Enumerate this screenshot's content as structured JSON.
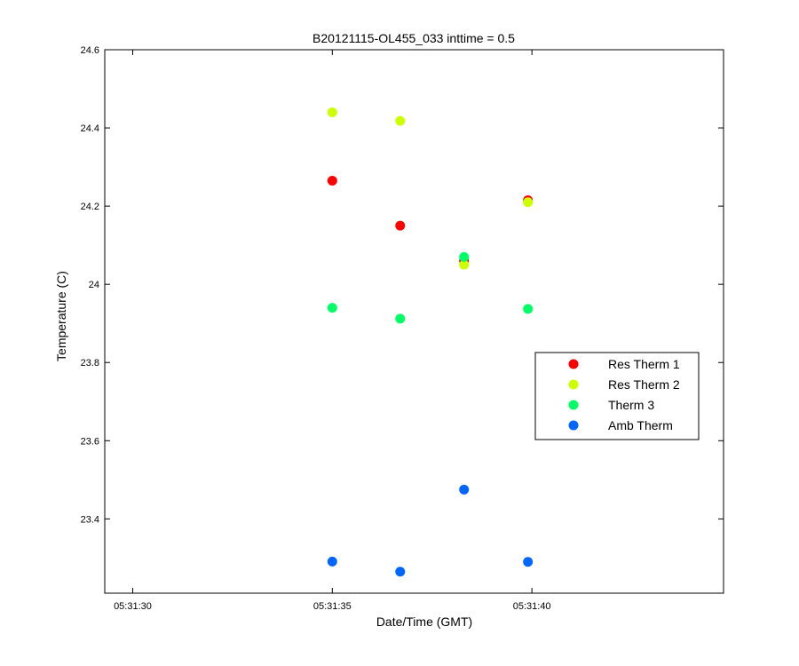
{
  "chart_data": {
    "type": "scatter",
    "title": "B20121115-OL455_033 inttime = 0.5",
    "xlabel": "Date/Time (GMT)",
    "ylabel": "Temperature (C)",
    "xlim": [
      "05:31:29.3",
      "05:31:44.8"
    ],
    "ylim": [
      23.21,
      24.6
    ],
    "x_ticks": [
      {
        "value": "05:31:30",
        "label": "05:31:30"
      },
      {
        "value": "05:31:35",
        "label": "05:31:35"
      },
      {
        "value": "05:31:40",
        "label": "05:31:40"
      }
    ],
    "y_ticks": [
      {
        "value": 23.4,
        "label": "23.4"
      },
      {
        "value": 23.6,
        "label": "23.6"
      },
      {
        "value": 23.8,
        "label": "23.8"
      },
      {
        "value": 24.0,
        "label": "24"
      },
      {
        "value": 24.2,
        "label": "24.2"
      },
      {
        "value": 24.4,
        "label": "24.4"
      },
      {
        "value": 24.6,
        "label": "24.6"
      }
    ],
    "grid": false,
    "legend_position": "right",
    "series": [
      {
        "name": "Res Therm 1",
        "color": "#ff0000",
        "x": [
          "05:31:35.0",
          "05:31:36.7",
          "05:31:38.3",
          "05:31:39.9"
        ],
        "y": [
          24.265,
          24.15,
          24.06,
          24.215
        ]
      },
      {
        "name": "Res Therm 2",
        "color": "#ccff00",
        "x": [
          "05:31:35.0",
          "05:31:36.7",
          "05:31:38.3",
          "05:31:39.9"
        ],
        "y": [
          24.44,
          24.418,
          24.05,
          24.21
        ]
      },
      {
        "name": "Therm 3",
        "color": "#00ff66",
        "x": [
          "05:31:35.0",
          "05:31:36.7",
          "05:31:38.3",
          "05:31:39.9"
        ],
        "y": [
          23.94,
          23.912,
          24.07,
          23.937
        ]
      },
      {
        "name": "Amb Therm",
        "color": "#0066ff",
        "x": [
          "05:31:35.0",
          "05:31:36.7",
          "05:31:38.3",
          "05:31:39.9"
        ],
        "y": [
          23.291,
          23.265,
          23.475,
          23.29
        ]
      }
    ]
  }
}
